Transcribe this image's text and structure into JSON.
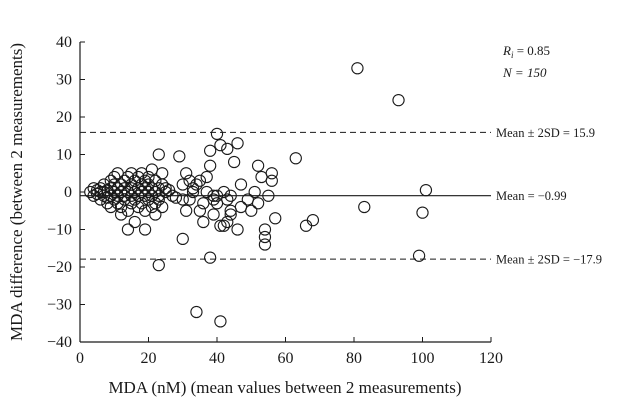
{
  "chart_data": {
    "type": "scatter",
    "title": "",
    "xlabel": "MDA (nM) (mean values between 2 measurements)",
    "ylabel": "MDA difference (between 2 measurements)",
    "xlim": [
      0,
      120
    ],
    "ylim": [
      -40,
      40
    ],
    "x_ticks": [
      "0",
      "20",
      "40",
      "60",
      "80",
      "100",
      "120"
    ],
    "y_ticks": [
      "40",
      "30",
      "20",
      "10",
      "0",
      "-10",
      "-20",
      "-30",
      "-40"
    ],
    "grid": false,
    "stats": {
      "ri_label": "R",
      "ri_sub": "i",
      "ri_value": " = 0.85",
      "n_text": "N = 150"
    },
    "reference_lines": [
      {
        "y": 15.9,
        "style": "dashed",
        "label": "Mean ± 2SD = 15.9"
      },
      {
        "y": -0.99,
        "style": "solid",
        "label": "Mean = −0.99"
      },
      {
        "y": -17.9,
        "style": "dashed",
        "label": "Mean ± 2SD = −17.9"
      }
    ],
    "points": [
      [
        3,
        0
      ],
      [
        4,
        1
      ],
      [
        4,
        -1
      ],
      [
        5,
        0.5
      ],
      [
        5,
        -0.5
      ],
      [
        6,
        1
      ],
      [
        6,
        -2
      ],
      [
        6,
        0
      ],
      [
        7,
        0
      ],
      [
        7,
        2
      ],
      [
        7,
        -1
      ],
      [
        8,
        -3
      ],
      [
        8,
        0.5
      ],
      [
        8,
        -1.5
      ],
      [
        9,
        1
      ],
      [
        9,
        -1
      ],
      [
        9,
        3
      ],
      [
        9,
        -4
      ],
      [
        10,
        0
      ],
      [
        10,
        2
      ],
      [
        10,
        4
      ],
      [
        10,
        -2
      ],
      [
        11,
        1
      ],
      [
        11,
        -1
      ],
      [
        11,
        5
      ],
      [
        11,
        -3
      ],
      [
        12,
        0
      ],
      [
        12,
        2
      ],
      [
        12,
        -6
      ],
      [
        12,
        -4
      ],
      [
        13,
        1
      ],
      [
        13,
        3
      ],
      [
        13,
        -1
      ],
      [
        13,
        -2
      ],
      [
        14,
        0
      ],
      [
        14,
        4
      ],
      [
        14,
        -10
      ],
      [
        14,
        -5
      ],
      [
        15,
        1
      ],
      [
        15,
        -1
      ],
      [
        15,
        2
      ],
      [
        15,
        -3
      ],
      [
        15,
        5
      ],
      [
        16,
        0
      ],
      [
        16,
        3
      ],
      [
        16,
        -2
      ],
      [
        16,
        -8
      ],
      [
        17,
        1
      ],
      [
        17,
        -1
      ],
      [
        17,
        4
      ],
      [
        17,
        -4
      ],
      [
        18,
        0
      ],
      [
        18,
        2
      ],
      [
        18,
        -3
      ],
      [
        18,
        5
      ],
      [
        19,
        1
      ],
      [
        19,
        -1
      ],
      [
        19,
        3
      ],
      [
        19,
        -5
      ],
      [
        19,
        -10
      ],
      [
        20,
        0
      ],
      [
        20,
        2
      ],
      [
        20,
        -2
      ],
      [
        20,
        4
      ],
      [
        21,
        1
      ],
      [
        21,
        -1
      ],
      [
        21,
        6
      ],
      [
        21,
        -4
      ],
      [
        22,
        0
      ],
      [
        22,
        3
      ],
      [
        22,
        -3
      ],
      [
        22,
        -6
      ],
      [
        23,
        1
      ],
      [
        23,
        -1
      ],
      [
        23,
        10
      ],
      [
        23,
        -2
      ],
      [
        23,
        -19.5
      ],
      [
        24,
        2
      ],
      [
        24,
        -4
      ],
      [
        24,
        5
      ],
      [
        25,
        0
      ],
      [
        25,
        1
      ],
      [
        27,
        -1
      ],
      [
        29,
        9.5
      ],
      [
        30,
        2
      ],
      [
        30,
        -2
      ],
      [
        30,
        -12.5
      ],
      [
        31,
        5
      ],
      [
        32,
        3
      ],
      [
        32,
        -2
      ],
      [
        33,
        0
      ],
      [
        33,
        1
      ],
      [
        34,
        2
      ],
      [
        34,
        -32
      ],
      [
        35,
        -5
      ],
      [
        35,
        3
      ],
      [
        36,
        -8
      ],
      [
        37,
        0
      ],
      [
        37,
        4
      ],
      [
        38,
        -17.5
      ],
      [
        38,
        7
      ],
      [
        38,
        11
      ],
      [
        39,
        -1
      ],
      [
        39,
        -2
      ],
      [
        39,
        -6
      ],
      [
        40,
        15.5
      ],
      [
        40,
        -3
      ],
      [
        40,
        -1
      ],
      [
        41,
        12.5
      ],
      [
        41,
        -34.5
      ],
      [
        41,
        -9
      ],
      [
        42,
        -9
      ],
      [
        42,
        0
      ],
      [
        43,
        11.5
      ],
      [
        43,
        -2
      ],
      [
        43,
        -8
      ],
      [
        44,
        -5
      ],
      [
        44,
        -1
      ],
      [
        44,
        -6
      ],
      [
        45,
        8
      ],
      [
        46,
        13
      ],
      [
        46,
        -10
      ],
      [
        47,
        2
      ],
      [
        49,
        -2
      ],
      [
        50,
        -5
      ],
      [
        51,
        0
      ],
      [
        52,
        7
      ],
      [
        53,
        4
      ],
      [
        54,
        -10
      ],
      [
        54,
        -12
      ],
      [
        54,
        -14
      ],
      [
        55,
        -1
      ],
      [
        56,
        3
      ],
      [
        56,
        5
      ],
      [
        57,
        -7
      ],
      [
        63,
        9
      ],
      [
        66,
        -9
      ],
      [
        68,
        -7.5
      ],
      [
        81,
        33
      ],
      [
        83,
        -4
      ],
      [
        93,
        24.5
      ],
      [
        99,
        -17
      ],
      [
        100,
        -5.5
      ],
      [
        101,
        0.5
      ],
      [
        28,
        -1.5
      ],
      [
        26,
        0.5
      ],
      [
        36,
        -3
      ],
      [
        47,
        -4
      ],
      [
        52,
        -3
      ],
      [
        31,
        -5
      ]
    ]
  }
}
